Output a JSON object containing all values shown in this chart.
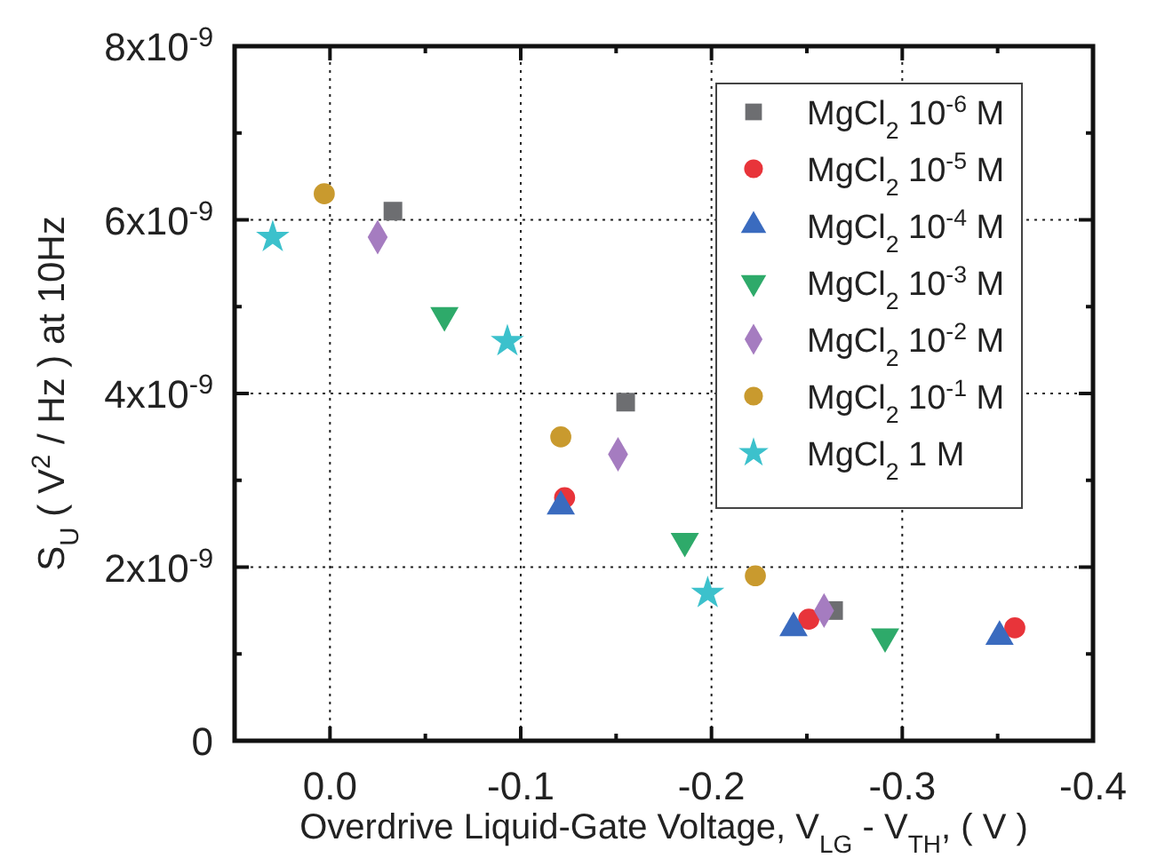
{
  "chart_data": {
    "type": "scatter",
    "xlabel": "Overdrive Liquid-Gate Voltage, V$_{LG}$ - V$_{TH}$, ( V )",
    "ylabel": "S$_{U}$ ( V$^{2}$ / Hz ) at 10Hz",
    "xlim": [
      0.05,
      -0.4
    ],
    "xticks": [
      {
        "value": 0.05,
        "label": null
      },
      {
        "value": 0.0,
        "label": "0.0"
      },
      {
        "value": -0.05,
        "label": null
      },
      {
        "value": -0.1,
        "label": "-0.1"
      },
      {
        "value": -0.15,
        "label": null
      },
      {
        "value": -0.2,
        "label": "-0.2"
      },
      {
        "value": -0.25,
        "label": null
      },
      {
        "value": -0.3,
        "label": "-0.3"
      },
      {
        "value": -0.35,
        "label": null
      },
      {
        "value": -0.4,
        "label": "-0.4"
      }
    ],
    "ylim": [
      0,
      8e-09
    ],
    "yticks": [
      0,
      {
        "value": 1e-09,
        "label": null
      },
      {
        "value": 2e-09,
        "label": "2x10$^{-9}$"
      },
      {
        "value": 3e-09,
        "label": null
      },
      {
        "value": 4e-09,
        "label": "4x10$^{-9}$"
      },
      {
        "value": 5e-09,
        "label": null
      },
      {
        "value": 6e-09,
        "label": "6x10$^{-9}$"
      },
      {
        "value": 7e-09,
        "label": null
      },
      {
        "value": 8e-09,
        "label": "8x10$^{-9}$"
      }
    ],
    "grid": true,
    "legend": "top right",
    "series": [
      {
        "name": "MgCl$_{2}$ 10$^{-6}$ M",
        "color": "#6d6e71",
        "marker": "square",
        "x": [
          -0.033,
          -0.155,
          -0.264
        ],
        "values": [
          6.1e-09,
          3.9e-09,
          1.5e-09
        ]
      },
      {
        "name": "MgCl$_{2}$ 10$^{-5}$ M",
        "color": "#e8343a",
        "marker": "circle",
        "x": [
          -0.123,
          -0.251,
          -0.359
        ],
        "values": [
          2.8e-09,
          1.4e-09,
          1.3e-09
        ]
      },
      {
        "name": "MgCl$_{2}$ 10$^{-4}$ M",
        "color": "#3a6bbf",
        "marker": "triangle",
        "x": [
          -0.121,
          -0.243,
          -0.351
        ],
        "values": [
          2.7e-09,
          1.3e-09,
          1.2e-09
        ]
      },
      {
        "name": "MgCl$_{2}$ 10$^{-3}$ M",
        "color": "#2eaa6a",
        "marker": "triangle-down",
        "x": [
          -0.06,
          -0.186,
          -0.291
        ],
        "values": [
          4.9e-09,
          2.3e-09,
          1.2e-09
        ]
      },
      {
        "name": "MgCl$_{2}$ 10$^{-2}$ M",
        "color": "#a57cc0",
        "marker": "diamond",
        "x": [
          -0.025,
          -0.151,
          -0.259
        ],
        "values": [
          5.8e-09,
          3.3e-09,
          1.5e-09
        ]
      },
      {
        "name": "MgCl$_{2}$ 10$^{-1}$ M",
        "color": "#c99a2e",
        "marker": "circle",
        "x": [
          0.003,
          -0.121,
          -0.223
        ],
        "values": [
          6.3e-09,
          3.5e-09,
          1.9e-09
        ]
      },
      {
        "name": "MgCl$_{2}$ 1 M",
        "color": "#3cc1cc",
        "marker": "star",
        "x": [
          0.03,
          -0.093,
          -0.198
        ],
        "values": [
          5.8e-09,
          4.6e-09,
          1.7e-09
        ]
      }
    ]
  }
}
